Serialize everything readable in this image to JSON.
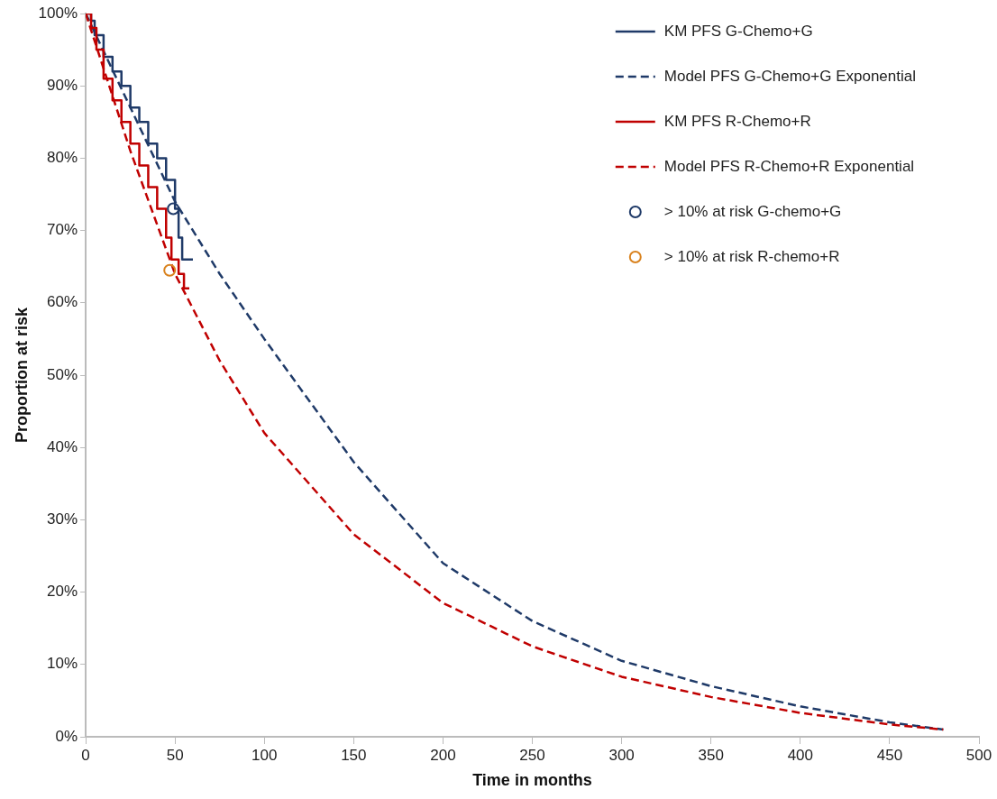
{
  "chart_data": {
    "type": "line",
    "xlabel": "Time in months",
    "ylabel": "Proportion at risk",
    "grid": false,
    "legend": "top right",
    "xlim": [
      0,
      500
    ],
    "xticks": [
      0,
      50,
      100,
      150,
      200,
      250,
      300,
      350,
      400,
      450,
      500
    ],
    "ylim": [
      0,
      100
    ],
    "yticks": [
      {
        "value": 0,
        "label": "0%"
      },
      {
        "value": 10,
        "label": "10%"
      },
      {
        "value": 20,
        "label": "20%"
      },
      {
        "value": 30,
        "label": "30%"
      },
      {
        "value": 40,
        "label": "40%"
      },
      {
        "value": 50,
        "label": "50%"
      },
      {
        "value": 60,
        "label": "60%"
      },
      {
        "value": 70,
        "label": "70%"
      },
      {
        "value": 80,
        "label": "80%"
      },
      {
        "value": 90,
        "label": "90%"
      },
      {
        "value": 100,
        "label": "100%"
      }
    ],
    "series": [
      {
        "name": "KM PFS G-Chemo+G",
        "type": "step",
        "color": "#1f3a68",
        "line_style": "solid",
        "marker": "none",
        "x": [
          0,
          3,
          5,
          10,
          15,
          20,
          25,
          30,
          35,
          40,
          45,
          50,
          52,
          54,
          60
        ],
        "values": [
          100,
          99,
          97,
          94,
          92,
          90,
          87,
          85,
          82,
          80,
          77,
          73,
          69,
          66,
          66
        ]
      },
      {
        "name": "Model PFS G-Chemo+G Exponential",
        "type": "line",
        "color": "#1f3a68",
        "line_style": "dashed",
        "marker": "none",
        "x": [
          0,
          25,
          50,
          75,
          100,
          150,
          200,
          250,
          300,
          350,
          400,
          450,
          480
        ],
        "values": [
          100,
          87,
          74,
          64,
          55,
          38,
          24,
          16,
          10.5,
          7,
          4.2,
          2,
          1
        ]
      },
      {
        "name": "KM PFS R-Chemo+R",
        "type": "step",
        "color": "#c00000",
        "line_style": "solid",
        "marker": "none",
        "x": [
          0,
          3,
          6,
          10,
          15,
          20,
          25,
          30,
          35,
          40,
          45,
          48,
          52,
          55,
          58
        ],
        "values": [
          100,
          98,
          95,
          91,
          88,
          85,
          82,
          79,
          76,
          73,
          69,
          66,
          64,
          62,
          62
        ]
      },
      {
        "name": "Model PFS R-Chemo+R Exponential",
        "type": "line",
        "color": "#c00000",
        "line_style": "dashed",
        "marker": "none",
        "x": [
          0,
          25,
          50,
          75,
          100,
          150,
          200,
          250,
          300,
          350,
          400,
          450,
          480
        ],
        "values": [
          100,
          81,
          64,
          52,
          42,
          28,
          18.5,
          12.5,
          8.3,
          5.5,
          3.3,
          1.7,
          1
        ]
      },
      {
        "name": "> 10% at risk G-chemo+G",
        "type": "scatter",
        "color": "#1f3a68",
        "marker": "circle",
        "x": [
          49
        ],
        "values": [
          73
        ]
      },
      {
        "name": "> 10% at risk R-chemo+R",
        "type": "scatter",
        "color": "#d9821e",
        "marker": "circle",
        "x": [
          47
        ],
        "values": [
          64.5
        ]
      }
    ]
  }
}
